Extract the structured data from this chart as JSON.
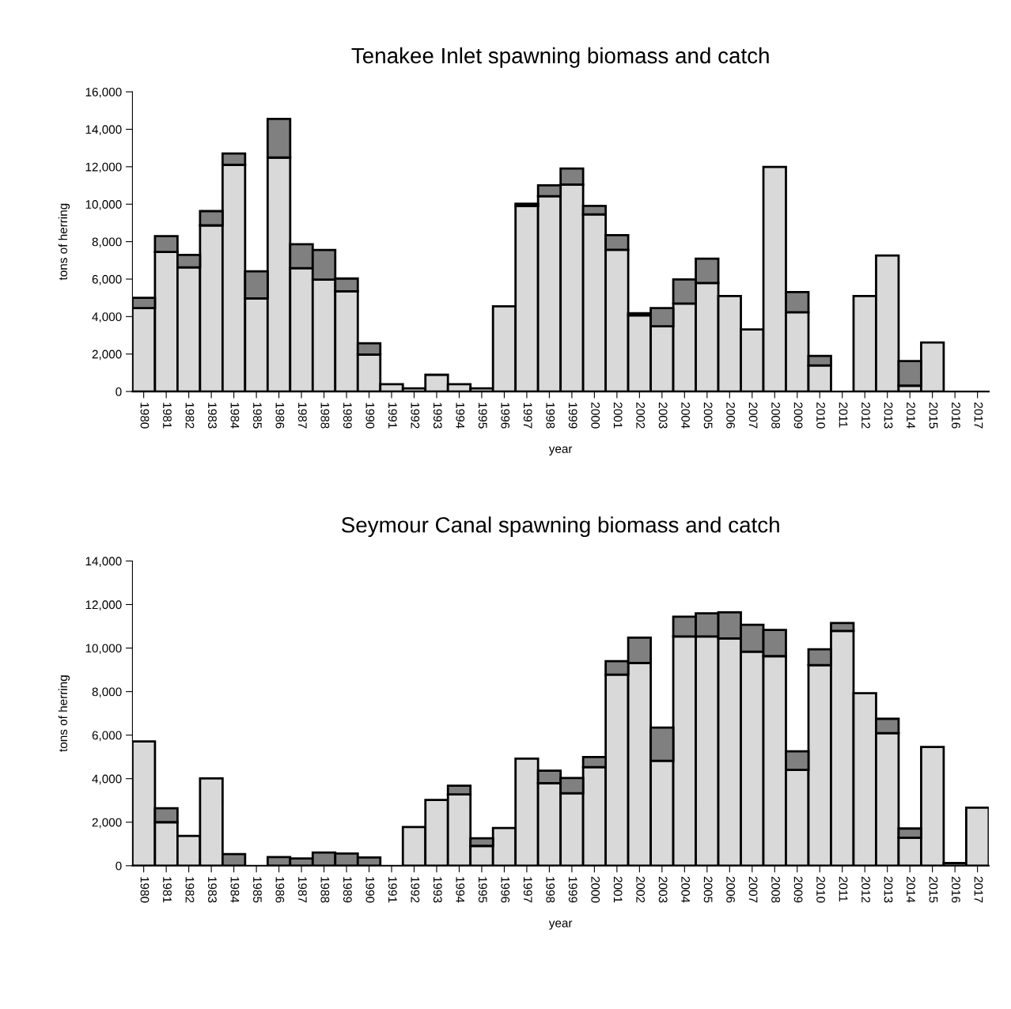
{
  "chart_data": [
    {
      "type": "bar",
      "title": "Tenakee Inlet spawning biomass and catch",
      "xlabel": "year",
      "ylabel": "tons of herring",
      "stacked": true,
      "grid": false,
      "categories": [
        "1980",
        "1981",
        "1982",
        "1983",
        "1984",
        "1985",
        "1986",
        "1987",
        "1988",
        "1989",
        "1990",
        "1991",
        "1992",
        "1993",
        "1994",
        "1995",
        "1996",
        "1997",
        "1998",
        "1999",
        "2000",
        "2001",
        "2002",
        "2003",
        "2004",
        "2005",
        "2006",
        "2007",
        "2008",
        "2009",
        "2010",
        "2011",
        "2012",
        "2013",
        "2014",
        "2015",
        "2016",
        "2017"
      ],
      "series": [
        {
          "color": "#d9d9d9",
          "values": [
            4450,
            7450,
            6630,
            8870,
            12100,
            4970,
            12490,
            6580,
            5970,
            5350,
            1970,
            390,
            170,
            890,
            390,
            170,
            4550,
            9900,
            10430,
            11050,
            9460,
            7570,
            4060,
            3480,
            4700,
            5790,
            5100,
            3310,
            11990,
            4230,
            1390,
            null,
            5100,
            7260,
            310,
            2620,
            null,
            null
          ]
        },
        {
          "color": "#808080",
          "values": [
            550,
            840,
            660,
            760,
            610,
            1450,
            2060,
            1280,
            1590,
            680,
            600,
            0,
            0,
            0,
            0,
            0,
            0,
            120,
            580,
            850,
            450,
            780,
            120,
            970,
            1280,
            1300,
            0,
            0,
            0,
            1080,
            510,
            null,
            0,
            0,
            1310,
            0,
            null,
            null
          ]
        }
      ],
      "ylim": [
        0,
        16000
      ],
      "yticks": [
        0,
        {
          "value": 2000,
          "label": "2,000"
        },
        {
          "value": 4000,
          "label": "4,000"
        },
        {
          "value": 6000,
          "label": "6,000"
        },
        {
          "value": 8000,
          "label": "8,000"
        },
        {
          "value": 10000,
          "label": "10,000"
        },
        {
          "value": 12000,
          "label": "12,000"
        },
        {
          "value": 14000,
          "label": "14,000"
        },
        {
          "value": 16000,
          "label": "16,000"
        }
      ]
    },
    {
      "type": "bar",
      "title": "Seymour Canal spawning biomass and catch",
      "xlabel": "year",
      "ylabel": "tons of herring",
      "stacked": true,
      "grid": false,
      "categories": [
        "1980",
        "1981",
        "1982",
        "1983",
        "1984",
        "1985",
        "1986",
        "1987",
        "1988",
        "1989",
        "1990",
        "1991",
        "1992",
        "1993",
        "1994",
        "1995",
        "1996",
        "1997",
        "1998",
        "1999",
        "2000",
        "2001",
        "2002",
        "2003",
        "2004",
        "2005",
        "2006",
        "2007",
        "2008",
        "2009",
        "2010",
        "2011",
        "2012",
        "2013",
        "2014",
        "2015",
        "2016",
        "2017"
      ],
      "series": [
        {
          "color": "#d9d9d9",
          "values": [
            5710,
            2000,
            1370,
            4010,
            0,
            0,
            0,
            0,
            0,
            0,
            0,
            0,
            1780,
            3020,
            3280,
            910,
            1730,
            4920,
            3790,
            3330,
            4530,
            8780,
            9320,
            4820,
            10530,
            10530,
            10440,
            9830,
            9630,
            4400,
            9220,
            10790,
            7930,
            6090,
            1290,
            5460,
            120,
            2670
          ]
        },
        {
          "color": "#808080",
          "values": [
            0,
            640,
            0,
            0,
            530,
            0,
            400,
            330,
            610,
            560,
            380,
            0,
            0,
            0,
            400,
            350,
            0,
            0,
            580,
            700,
            460,
            620,
            1160,
            1530,
            910,
            1070,
            1200,
            1240,
            1200,
            860,
            720,
            360,
            0,
            660,
            420,
            0,
            0,
            0
          ]
        }
      ],
      "ylim": [
        0,
        14000
      ],
      "yticks": [
        0,
        {
          "value": 2000,
          "label": "2,000"
        },
        {
          "value": 4000,
          "label": "4,000"
        },
        {
          "value": 6000,
          "label": "6,000"
        },
        {
          "value": 8000,
          "label": "8,000"
        },
        {
          "value": 10000,
          "label": "10,000"
        },
        {
          "value": 12000,
          "label": "12,000"
        },
        {
          "value": 14000,
          "label": "14,000"
        }
      ]
    }
  ]
}
